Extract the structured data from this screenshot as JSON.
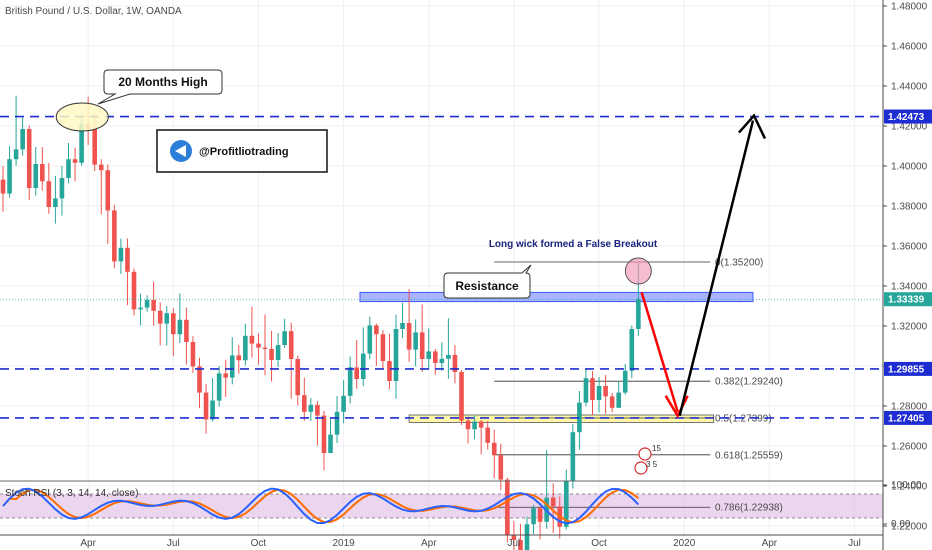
{
  "chart_data": {
    "type": "candlestick",
    "title": "British Pound / U.S. Dollar, 1W, OANDA",
    "price_ticks": [
      "1.48000",
      "1.46000",
      "1.44000",
      "1.42000",
      "1.40000",
      "1.38000",
      "1.36000",
      "1.34000",
      "1.32000",
      "1.30000",
      "1.28000",
      "1.26000",
      "1.24000",
      "1.22000"
    ],
    "ylim": [
      1.208,
      1.4835
    ],
    "time_ticks": [
      {
        "label": "Apr",
        "t": 13
      },
      {
        "label": "Jul",
        "t": 26
      },
      {
        "label": "Oct",
        "t": 39
      },
      {
        "label": "2019",
        "t": 52
      },
      {
        "label": "Apr",
        "t": 65
      },
      {
        "label": "Jul",
        "t": 78
      },
      {
        "label": "Oct",
        "t": 91
      },
      {
        "label": "2020",
        "t": 104
      },
      {
        "label": "Apr",
        "t": 117
      },
      {
        "label": "Jul",
        "t": 130
      }
    ],
    "tlim": [
      0,
      140
    ],
    "candles": [
      [
        1.3932,
        1.3862,
        1.4,
        1.3772
      ],
      [
        1.3862,
        1.4034,
        1.41,
        1.3842
      ],
      [
        1.4034,
        1.4083,
        1.4352,
        1.4001
      ],
      [
        1.4083,
        1.4185,
        1.4242,
        1.4052
      ],
      [
        1.4185,
        1.389,
        1.4203,
        1.383
      ],
      [
        1.389,
        1.401,
        1.4095,
        1.3852
      ],
      [
        1.401,
        1.3924,
        1.4095,
        1.3876
      ],
      [
        1.3924,
        1.3795,
        1.4015,
        1.3761
      ],
      [
        1.3795,
        1.3838,
        1.3951,
        1.3712
      ],
      [
        1.3838,
        1.394,
        1.4,
        1.3752
      ],
      [
        1.394,
        1.4034,
        1.4115,
        1.3914
      ],
      [
        1.4034,
        1.4016,
        1.4092,
        1.3923
      ],
      [
        1.4016,
        1.4211,
        1.4244,
        1.4001
      ],
      [
        1.4211,
        1.4185,
        1.4347,
        1.4105
      ],
      [
        1.4185,
        1.4007,
        1.4256,
        1.3975
      ],
      [
        1.4007,
        1.3979,
        1.4034,
        1.3759
      ],
      [
        1.3979,
        1.3778,
        1.4008,
        1.3611
      ],
      [
        1.3778,
        1.3523,
        1.3806,
        1.3488
      ],
      [
        1.3523,
        1.3591,
        1.3637,
        1.346
      ],
      [
        1.3591,
        1.3471,
        1.3638,
        1.3304
      ],
      [
        1.3471,
        1.3283,
        1.3487,
        1.3253
      ],
      [
        1.3283,
        1.3292,
        1.3362,
        1.3204
      ],
      [
        1.3292,
        1.3331,
        1.3353,
        1.3272
      ],
      [
        1.3331,
        1.3276,
        1.3421,
        1.3201
      ],
      [
        1.3276,
        1.3212,
        1.3318,
        1.3104
      ],
      [
        1.3212,
        1.3264,
        1.33,
        1.3102
      ],
      [
        1.3264,
        1.3159,
        1.3289,
        1.3049
      ],
      [
        1.3159,
        1.3231,
        1.3363,
        1.3115
      ],
      [
        1.3231,
        1.312,
        1.3293,
        1.3008
      ],
      [
        1.312,
        1.2998,
        1.3149,
        1.2966
      ],
      [
        1.2998,
        1.2867,
        1.3041,
        1.2789
      ],
      [
        1.2867,
        1.2733,
        1.2911,
        1.2662
      ],
      [
        1.2733,
        1.2827,
        1.2939,
        1.2722
      ],
      [
        1.2827,
        1.2963,
        1.2999,
        1.2797
      ],
      [
        1.2963,
        1.2942,
        1.3031,
        1.2845
      ],
      [
        1.2942,
        1.3053,
        1.3144,
        1.2908
      ],
      [
        1.3053,
        1.3029,
        1.3105,
        1.2962
      ],
      [
        1.3029,
        1.3151,
        1.3212,
        1.3003
      ],
      [
        1.3151,
        1.3112,
        1.3297,
        1.3042
      ],
      [
        1.3112,
        1.3092,
        1.3163,
        1.3006
      ],
      [
        1.3092,
        1.3085,
        1.3258,
        1.2954
      ],
      [
        1.3085,
        1.303,
        1.3176,
        1.2922
      ],
      [
        1.303,
        1.3105,
        1.3165,
        1.2996
      ],
      [
        1.3105,
        1.3174,
        1.3236,
        1.3091
      ],
      [
        1.3174,
        1.3035,
        1.3216,
        1.2837
      ],
      [
        1.3035,
        1.2854,
        1.3052,
        1.2803
      ],
      [
        1.2854,
        1.2771,
        1.2942,
        1.2726
      ],
      [
        1.2771,
        1.2806,
        1.284,
        1.2726
      ],
      [
        1.2806,
        1.2752,
        1.2825,
        1.2601
      ],
      [
        1.2752,
        1.2565,
        1.2775,
        1.2477
      ],
      [
        1.2565,
        1.2657,
        1.2743,
        1.2571
      ],
      [
        1.2657,
        1.2771,
        1.285,
        1.2615
      ],
      [
        1.2771,
        1.2851,
        1.2929,
        1.2714
      ],
      [
        1.2851,
        1.2993,
        1.3048,
        1.2813
      ],
      [
        1.2993,
        1.2935,
        1.313,
        1.2886
      ],
      [
        1.2935,
        1.3062,
        1.3193,
        1.29
      ],
      [
        1.3062,
        1.3203,
        1.3246,
        1.3035
      ],
      [
        1.3203,
        1.3159,
        1.3212,
        1.3001
      ],
      [
        1.3159,
        1.3025,
        1.318,
        1.2986
      ],
      [
        1.3025,
        1.2925,
        1.3162,
        1.2884
      ],
      [
        1.2925,
        1.3185,
        1.3256,
        1.2836
      ],
      [
        1.3185,
        1.3215,
        1.3316,
        1.3139
      ],
      [
        1.3215,
        1.3082,
        1.3385,
        1.3021
      ],
      [
        1.3082,
        1.3168,
        1.3233,
        1.2998
      ],
      [
        1.3168,
        1.3035,
        1.3307,
        1.297
      ],
      [
        1.3035,
        1.3073,
        1.3189,
        1.2981
      ],
      [
        1.3073,
        1.3015,
        1.3085,
        1.2955
      ],
      [
        1.3015,
        1.3036,
        1.3118,
        1.2976
      ],
      [
        1.3036,
        1.3055,
        1.3238,
        1.2936
      ],
      [
        1.3055,
        1.297,
        1.3105,
        1.2913
      ],
      [
        1.297,
        1.2727,
        1.298,
        1.2705
      ],
      [
        1.2727,
        1.2684,
        1.2747,
        1.2613
      ],
      [
        1.2684,
        1.2722,
        1.275,
        1.2633
      ],
      [
        1.2722,
        1.2692,
        1.273,
        1.2558
      ],
      [
        1.2692,
        1.2616,
        1.2725,
        1.2583
      ],
      [
        1.2616,
        1.2554,
        1.2681,
        1.2438
      ],
      [
        1.2554,
        1.2432,
        1.2611,
        1.2381
      ],
      [
        1.2432,
        1.2155,
        1.2441,
        1.2118
      ],
      [
        1.2155,
        1.213,
        1.2225,
        1.2078
      ],
      [
        1.213,
        1.2065,
        1.221,
        1.2015
      ],
      [
        1.2065,
        1.2209,
        1.2246,
        1.2015
      ],
      [
        1.2209,
        1.2289,
        1.2306,
        1.216
      ],
      [
        1.2289,
        1.2221,
        1.23,
        1.2134
      ],
      [
        1.2221,
        1.2342,
        1.258,
        1.2186
      ],
      [
        1.2342,
        1.2298,
        1.2414,
        1.2165
      ],
      [
        1.2298,
        1.2196,
        1.2348,
        1.2136
      ],
      [
        1.2196,
        1.2425,
        1.2482,
        1.2182
      ],
      [
        1.2425,
        1.2669,
        1.2709,
        1.2387
      ],
      [
        1.2669,
        1.2817,
        1.2875,
        1.2582
      ],
      [
        1.2817,
        1.2939,
        1.2989,
        1.2798
      ],
      [
        1.2939,
        1.283,
        1.2975,
        1.2754
      ],
      [
        1.283,
        1.29,
        1.2945,
        1.2768
      ],
      [
        1.29,
        1.2848,
        1.2955,
        1.2761
      ],
      [
        1.2848,
        1.2791,
        1.2865,
        1.2769
      ],
      [
        1.2791,
        1.2867,
        1.292,
        1.283
      ],
      [
        1.2867,
        1.2976,
        1.301,
        1.2856
      ],
      [
        1.2976,
        1.3185,
        1.3202,
        1.2939
      ],
      [
        1.3185,
        1.3334,
        1.3514,
        1.315
      ]
    ],
    "current_price": "1.33339",
    "levels": [
      {
        "label": "1.42473",
        "value": 1.42473
      },
      {
        "label": "1.29855",
        "value": 1.29855
      },
      {
        "label": "1.27405",
        "value": 1.27405
      }
    ],
    "fib_levels": [
      {
        "label": "0(1.35200)",
        "value": 1.352
      },
      {
        "label": "0.382(1.29240)",
        "value": 1.2924
      },
      {
        "label": "0.5(1.27399)",
        "value": 1.27399
      },
      {
        "label": "0.618(1.25559)",
        "value": 1.25559
      },
      {
        "label": "0.786(1.22938)",
        "value": 1.22938
      }
    ],
    "annotations": {
      "months_high": "20 Months High",
      "watermark": "@Profitliotrading",
      "false_breakout": "Long wick formed a False Breakout",
      "resistance": "Resistance",
      "event_a": "15",
      "event_b": "3 5"
    },
    "stoch_rsi": {
      "label": "Stoch RSI (3, 3, 14, 14, close)",
      "ticks": [
        "100.00",
        "0.00"
      ],
      "k_color": "#2962ff",
      "d_color": "#ff6d00",
      "band_color": "#e1bee7"
    },
    "colors": {
      "up": "#26a69a",
      "down": "#ef5350",
      "level_line": "#1e2dd2",
      "price_tag": "#1e2dd2",
      "current_price_tag": "#26a69a",
      "resistance_zone": "#8c9eff",
      "fib_zone": "#fff59d",
      "arrow_down": "#ff0000",
      "arrow_up": "#000000"
    }
  }
}
